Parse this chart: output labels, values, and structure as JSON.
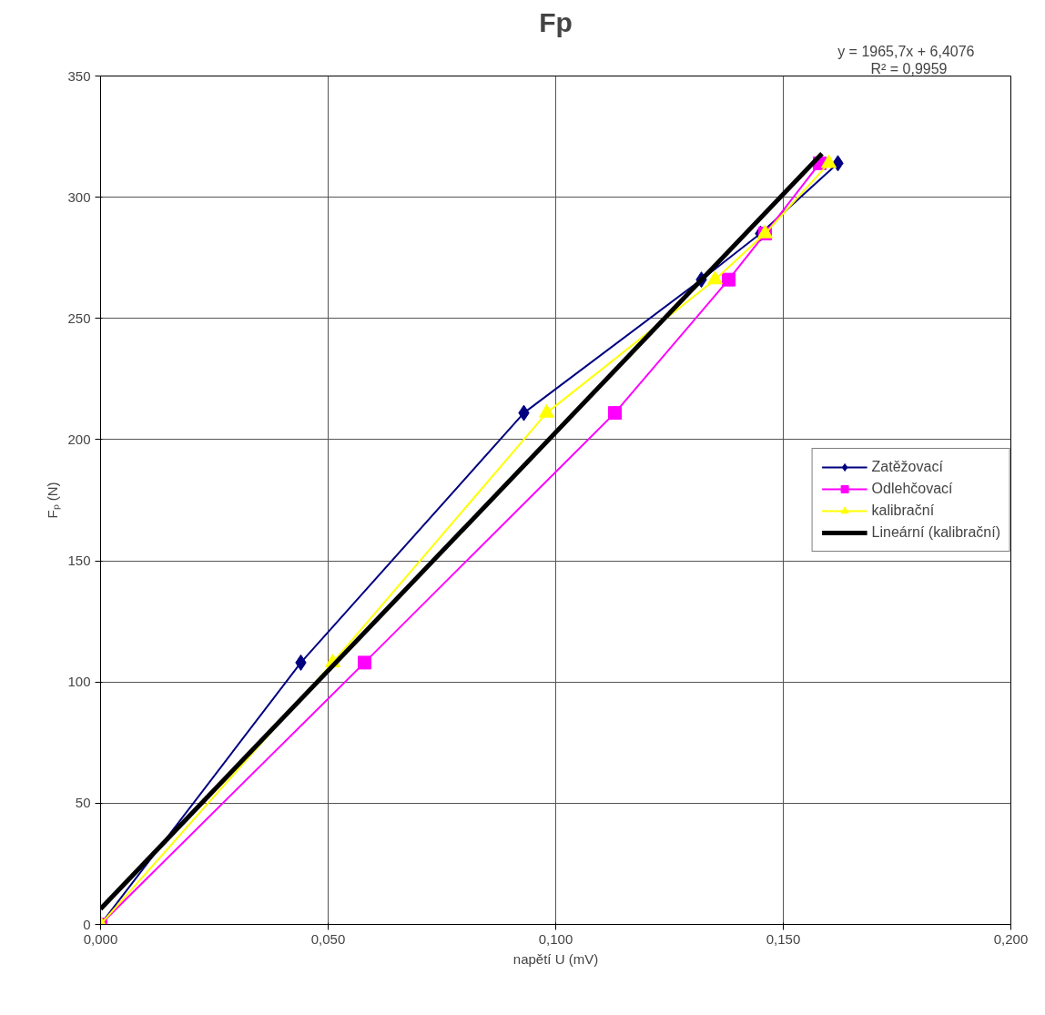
{
  "chart_data": {
    "type": "line",
    "title": "Fp",
    "xlabel": "napětí U (mV)",
    "ylabel": "Fₚ (N)",
    "annotations": [
      "y = 1965,7x + 6,4076",
      "R² = 0,9959"
    ],
    "series": [
      {
        "name": "Zatěžovací",
        "color": "#000080",
        "marker": "diamond",
        "x": [
          0,
          0.044,
          0.093,
          0.132,
          0.145,
          0.162
        ],
        "values": [
          0,
          108,
          211,
          266,
          285,
          314
        ]
      },
      {
        "name": "Odlehčovací",
        "color": "#ff00ff",
        "marker": "square",
        "x": [
          0,
          0.058,
          0.113,
          0.138,
          0.146,
          0.158
        ],
        "values": [
          0,
          108,
          211,
          266,
          285,
          314
        ]
      },
      {
        "name": "kalibrační",
        "color": "#ffff00",
        "marker": "triangle",
        "x": [
          0,
          0.051,
          0.098,
          0.135,
          0.146,
          0.16
        ],
        "values": [
          0,
          108,
          211,
          266,
          285,
          314
        ]
      },
      {
        "name": "Lineární (kalibrační)",
        "color": "#000000",
        "marker": "none",
        "x": [
          0,
          0.1585
        ],
        "values": [
          6.4,
          318
        ]
      }
    ],
    "xlim": [
      0,
      0.2
    ],
    "xticks": [
      {
        "value": 0,
        "label": "0,000"
      },
      {
        "value": 0.05,
        "label": "0,050"
      },
      {
        "value": 0.1,
        "label": "0,100"
      },
      {
        "value": 0.15,
        "label": "0,150"
      },
      {
        "value": 0.2,
        "label": "0,200"
      }
    ],
    "ylim": [
      0,
      350
    ],
    "yticks": [
      0,
      50,
      100,
      150,
      200,
      250,
      300,
      350
    ],
    "grid": true,
    "legend": "right"
  }
}
